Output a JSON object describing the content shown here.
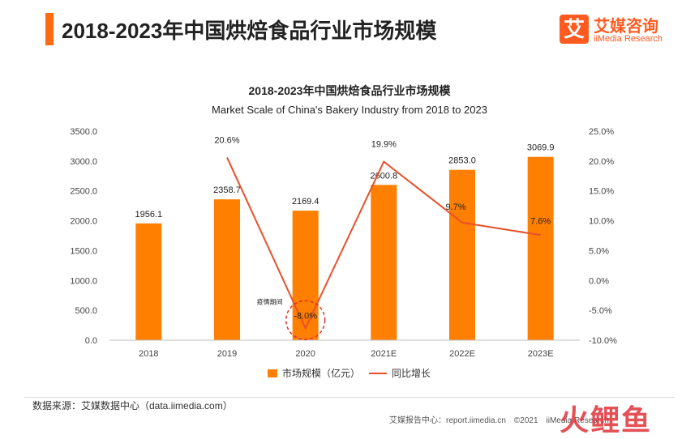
{
  "header": {
    "title": "2018-2023年中国烘焙食品行业市场规模",
    "logo_char": "艾",
    "logo_cn": "艾媒咨询",
    "logo_en": "iiMedia Research"
  },
  "chart_data": {
    "type": "bar",
    "title": "2018-2023年中国烘焙食品行业市场规模",
    "subtitle": "Market Scale of China's Bakery Industry from 2018 to 2023",
    "categories": [
      "2018",
      "2019",
      "2020",
      "2021E",
      "2022E",
      "2023E"
    ],
    "series": [
      {
        "name": "市场规模（亿元）",
        "type": "bar",
        "axis": "left",
        "color": "#ff7f00",
        "values": [
          1956.1,
          2358.7,
          2169.4,
          2600.8,
          2853.0,
          3069.9
        ],
        "labels": [
          "1956.1",
          "2358.7",
          "2169.4",
          "2600.8",
          "2853.0",
          "3069.9"
        ]
      },
      {
        "name": "同比增长",
        "type": "line",
        "axis": "right",
        "color": "#e8502a",
        "values": [
          null,
          20.6,
          -8.0,
          19.9,
          9.7,
          7.6
        ],
        "labels": [
          "",
          "20.6%",
          "-8.0%",
          "19.9%",
          "9.7%",
          "7.6%"
        ]
      }
    ],
    "y_left": {
      "min": 0,
      "max": 3500,
      "ticks": [
        "0.0",
        "500.0",
        "1000.0",
        "1500.0",
        "2000.0",
        "2500.0",
        "3000.0",
        "3500.0"
      ]
    },
    "y_right": {
      "min": -10,
      "max": 25,
      "ticks": [
        "-10.0%",
        "-5.0%",
        "0.0%",
        "5.0%",
        "10.0%",
        "15.0%",
        "20.0%",
        "25.0%"
      ]
    },
    "annotation": {
      "text": "疫情期间",
      "category": "2020"
    },
    "legend": "bottom",
    "grid": false
  },
  "footer": {
    "source": "数据来源：艾媒数据中心（data.iimedia.com）",
    "report": "艾媒报告中心：report.iimedia.cn　©2021　iiMedia Research",
    "watermark": "火鲤鱼"
  }
}
